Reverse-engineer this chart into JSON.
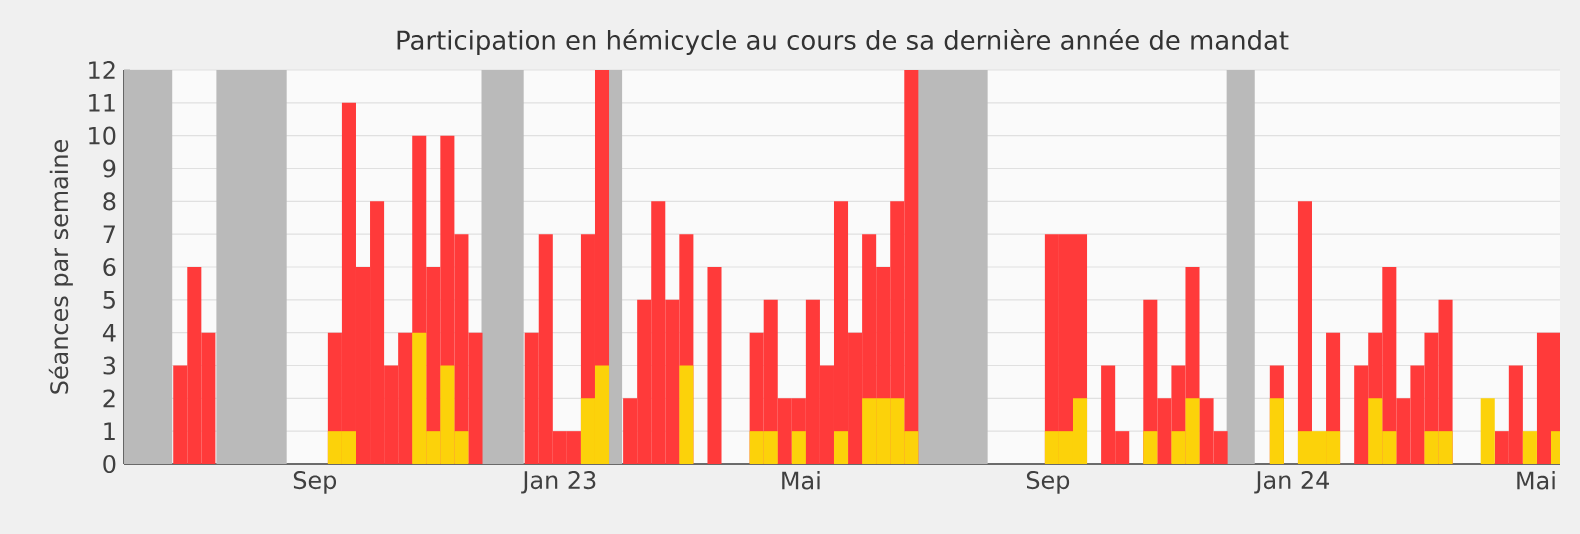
{
  "chart_data": {
    "type": "bar",
    "title": "Participation en hémicycle au cours de sa dernière année de mandat",
    "ylabel": "Séances par semaine",
    "x": [
      "2022-06-05",
      "2022-06-12",
      "2022-06-19",
      "2022-06-26",
      "2022-07-03",
      "2022-07-10",
      "2022-07-17",
      "2022-07-24",
      "2022-07-31",
      "2022-08-07",
      "2022-08-14",
      "2022-08-21",
      "2022-08-28",
      "2022-09-04",
      "2022-09-11",
      "2022-09-18",
      "2022-09-25",
      "2022-10-02",
      "2022-10-09",
      "2022-10-16",
      "2022-10-23",
      "2022-10-30",
      "2022-11-06",
      "2022-11-13",
      "2022-11-20",
      "2022-11-27",
      "2022-12-04",
      "2022-12-11",
      "2022-12-18",
      "2022-12-25",
      "2023-01-01",
      "2023-01-08",
      "2023-01-15",
      "2023-01-22",
      "2023-01-29",
      "2023-02-05",
      "2023-02-12",
      "2023-02-19",
      "2023-02-26",
      "2023-03-05",
      "2023-03-12",
      "2023-03-19",
      "2023-03-26",
      "2023-04-02",
      "2023-04-09",
      "2023-04-16",
      "2023-04-23",
      "2023-04-30",
      "2023-05-07",
      "2023-05-14",
      "2023-05-21",
      "2023-05-28",
      "2023-06-04",
      "2023-06-11",
      "2023-06-18",
      "2023-06-25",
      "2023-07-02",
      "2023-07-09",
      "2023-07-16",
      "2023-07-23",
      "2023-07-30",
      "2023-08-06",
      "2023-08-13",
      "2023-08-20",
      "2023-08-27",
      "2023-09-03",
      "2023-09-10",
      "2023-09-17",
      "2023-09-24",
      "2023-10-01",
      "2023-10-08",
      "2023-10-15",
      "2023-10-22",
      "2023-10-29",
      "2023-11-05",
      "2023-11-12",
      "2023-11-19",
      "2023-11-26",
      "2023-12-03",
      "2023-12-10",
      "2023-12-17",
      "2023-12-24",
      "2023-12-31",
      "2024-01-07",
      "2024-01-14",
      "2024-01-21",
      "2024-01-28",
      "2024-02-04",
      "2024-02-11",
      "2024-02-18",
      "2024-02-25",
      "2024-03-03",
      "2024-03-10",
      "2024-03-17",
      "2024-03-24",
      "2024-03-31",
      "2024-04-07",
      "2024-04-14",
      "2024-04-21",
      "2024-04-28",
      "2024-05-05",
      "2024-05-12"
    ],
    "series": [
      {
        "color": "#ff3a3a",
        "values": [
          0,
          0,
          0,
          3,
          6,
          4,
          0,
          0,
          0,
          0,
          0,
          0,
          0,
          0,
          4,
          11,
          6,
          8,
          3,
          4,
          10,
          6,
          10,
          7,
          4,
          0,
          0,
          0,
          4,
          7,
          1,
          1,
          7,
          12,
          0,
          2,
          5,
          8,
          5,
          7,
          0,
          6,
          0,
          0,
          4,
          5,
          2,
          2,
          5,
          3,
          8,
          4,
          7,
          6,
          8,
          12,
          0,
          0,
          0,
          0,
          0,
          0,
          0,
          0,
          0,
          7,
          7,
          7,
          0,
          3,
          1,
          0,
          5,
          2,
          3,
          6,
          2,
          1,
          0,
          0,
          0,
          3,
          0,
          8,
          null,
          4,
          0,
          3,
          4,
          6,
          2,
          3,
          4,
          5,
          0,
          0,
          null,
          1,
          3,
          null,
          4,
          4
        ]
      },
      {
        "color": "#fcd20a",
        "values": [
          0,
          0,
          0,
          0,
          0,
          0,
          0,
          0,
          0,
          0,
          0,
          0,
          0,
          0,
          1,
          1,
          0,
          0,
          0,
          0,
          4,
          1,
          3,
          1,
          0,
          0,
          0,
          0,
          0,
          0,
          0,
          0,
          2,
          3,
          0,
          0,
          0,
          0,
          0,
          3,
          0,
          0,
          0,
          0,
          1,
          1,
          0,
          1,
          0,
          0,
          1,
          0,
          2,
          2,
          2,
          1,
          0,
          0,
          0,
          0,
          0,
          0,
          0,
          0,
          0,
          1,
          1,
          2,
          0,
          0,
          0,
          0,
          1,
          0,
          1,
          2,
          0,
          0,
          0,
          0,
          0,
          2,
          0,
          1,
          1,
          1,
          0,
          0,
          2,
          1,
          0,
          0,
          1,
          1,
          0,
          0,
          2,
          0,
          0,
          1,
          0,
          1
        ]
      }
    ],
    "xlim": [
      "2022-05-29",
      "2024-05-13"
    ],
    "xticks": [
      {
        "value": "2022-09-01",
        "label": "Sep"
      },
      {
        "value": "2023-01-01",
        "label": "Jan 23"
      },
      {
        "value": "2023-05-01",
        "label": "Mai"
      },
      {
        "value": "2023-09-01",
        "label": "Sep"
      },
      {
        "value": "2024-01-01",
        "label": "Jan 24"
      },
      {
        "value": "2024-05-01",
        "label": "Mai"
      }
    ],
    "ylim": [
      0,
      12
    ],
    "yticks": [
      0,
      1,
      2,
      3,
      4,
      5,
      6,
      7,
      8,
      9,
      10,
      11,
      12
    ],
    "grid": "y",
    "bands": [
      {
        "axis": "x",
        "from": "2022-05-29",
        "to": "2022-06-22",
        "color": "#bababa"
      },
      {
        "axis": "x",
        "from": "2022-07-14",
        "to": "2022-08-18",
        "color": "#bababa"
      },
      {
        "axis": "x",
        "from": "2022-11-23",
        "to": "2022-12-14",
        "color": "#bababa"
      },
      {
        "axis": "x",
        "from": "2023-01-25",
        "to": "2023-02-01",
        "color": "#bababa"
      },
      {
        "axis": "x",
        "from": "2023-06-28",
        "to": "2023-08-02",
        "color": "#bababa"
      },
      {
        "axis": "x",
        "from": "2023-11-29",
        "to": "2023-12-13",
        "color": "#bababa"
      }
    ]
  }
}
